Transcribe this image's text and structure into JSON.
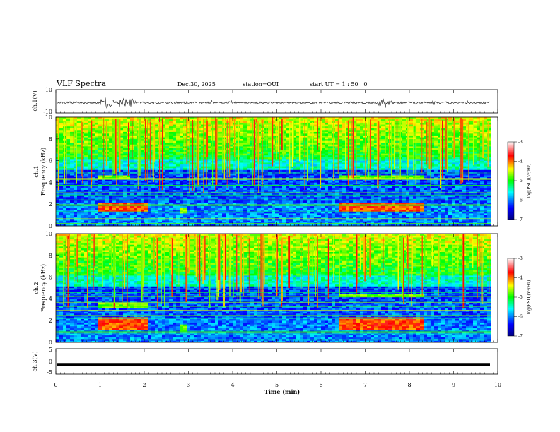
{
  "header": {
    "title": "VLF Spectra",
    "date": "Dec.30, 2025",
    "station": "station=OUI",
    "start": "start  UT =   1 : 50 : 0"
  },
  "chart_data": [
    {
      "type": "line",
      "panel": "ch1-waveform",
      "ylabel": "ch.1(V)",
      "ylim": [
        -10,
        10
      ],
      "yticks": [
        "10",
        "-10"
      ],
      "xlim": [
        0,
        10
      ],
      "bursts_min": [
        [
          1.0,
          1.3
        ],
        [
          1.4,
          1.75
        ],
        [
          7.3,
          7.6
        ]
      ]
    },
    {
      "type": "heatmap",
      "panel": "ch1-spectrogram",
      "ylabel_top": "ch.1",
      "ylabel": "Frequency (kHz)",
      "ylim": [
        0,
        10
      ],
      "yticks": [
        "0",
        "2",
        "4",
        "6",
        "8",
        "10"
      ],
      "xlim": [
        0,
        10
      ],
      "features": [
        {
          "t0": 0.9,
          "t1": 2.0,
          "f0": 1.3,
          "f1": 2.2,
          "level": "high"
        },
        {
          "t0": 6.4,
          "t1": 8.25,
          "f0": 1.3,
          "f1": 2.2,
          "level": "high"
        },
        {
          "t0": 0.9,
          "t1": 1.6,
          "f0": 4.3,
          "f1": 4.6,
          "level": "mid"
        },
        {
          "t0": 6.4,
          "t1": 8.25,
          "f0": 4.3,
          "f1": 4.6,
          "level": "mid"
        },
        {
          "t0": 2.75,
          "t1": 2.95,
          "f0": 1.2,
          "f1": 1.7,
          "level": "mid"
        }
      ],
      "colorbar": {
        "label": "log(PSD)(V²/Hz)",
        "range": [
          -7,
          -3
        ],
        "ticks": [
          "-3",
          "-4",
          "-5",
          "-6",
          "-7"
        ]
      }
    },
    {
      "type": "heatmap",
      "panel": "ch2-spectrogram",
      "ylabel_top": "ch.2",
      "ylabel": "Frequency (kHz)",
      "ylim": [
        0,
        10
      ],
      "yticks": [
        "0",
        "2",
        "4",
        "6",
        "8",
        "10"
      ],
      "xlim": [
        0,
        10
      ],
      "features": [
        {
          "t0": 0.9,
          "t1": 2.0,
          "f0": 1.2,
          "f1": 2.3,
          "level": "high"
        },
        {
          "t0": 6.4,
          "t1": 8.25,
          "f0": 1.2,
          "f1": 2.3,
          "level": "high"
        },
        {
          "t0": 0.9,
          "t1": 2.0,
          "f0": 3.2,
          "f1": 3.6,
          "level": "mid"
        },
        {
          "t0": 6.4,
          "t1": 8.25,
          "f0": 4.2,
          "f1": 4.5,
          "level": "mid"
        },
        {
          "t0": 2.75,
          "t1": 2.95,
          "f0": 1.0,
          "f1": 1.6,
          "level": "mid"
        }
      ],
      "colorbar": {
        "label": "log(PSD)(V²/Hz)",
        "range": [
          -7,
          -3
        ],
        "ticks": [
          "-3",
          "-4",
          "-5",
          "-6",
          "-7"
        ]
      }
    },
    {
      "type": "line",
      "panel": "ch3-waveform",
      "ylabel": "ch.3(V)",
      "ylim": [
        -5,
        5
      ],
      "yticks": [
        "5",
        "0",
        "-5"
      ],
      "xlim": [
        0,
        10
      ],
      "constant_value": -1.2
    }
  ],
  "x_axis": {
    "label": "Time (min)",
    "ticks": [
      "0",
      "1",
      "2",
      "3",
      "4",
      "5",
      "6",
      "7",
      "8",
      "9",
      "10"
    ]
  }
}
